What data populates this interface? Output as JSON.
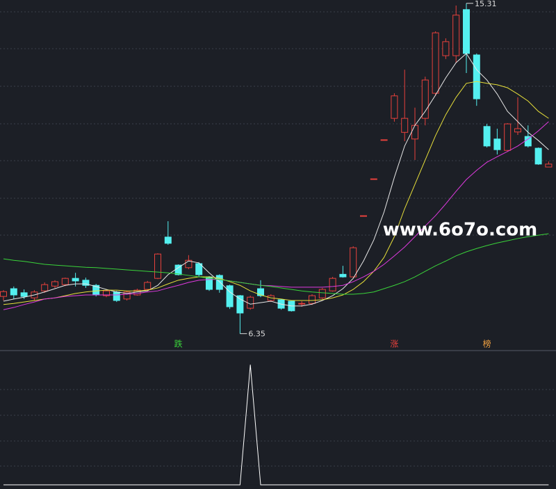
{
  "chart_data": {
    "type": "candlestick",
    "open": [
      7.36,
      7.57,
      7.46,
      7.32,
      7.51,
      7.64,
      7.68,
      7.85,
      7.8,
      7.66,
      7.38,
      7.48,
      7.29,
      7.4,
      7.55,
      7.85,
      8.97,
      8.21,
      8.14,
      8.25,
      7.89,
      7.93,
      7.65,
      7.38,
      7.04,
      7.57,
      7.25,
      7.27,
      7.23,
      7.17,
      7.17,
      7.32,
      7.51,
      7.96,
      7.89,
      9.55,
      10.55,
      11.61,
      12.19,
      11.81,
      11.63,
      12.19,
      12.87,
      13.89,
      13.89,
      15.14,
      13.91,
      11.97,
      11.63,
      11.32,
      11.82,
      11.7,
      11.38,
      10.87
    ],
    "close": [
      7.49,
      7.4,
      7.36,
      7.48,
      7.68,
      7.76,
      7.85,
      7.78,
      7.66,
      7.4,
      7.51,
      7.25,
      7.48,
      7.53,
      7.74,
      8.51,
      8.8,
      7.95,
      8.34,
      7.95,
      7.55,
      7.55,
      7.08,
      6.91,
      7.34,
      7.38,
      7.38,
      7.04,
      6.97,
      7.17,
      7.38,
      7.55,
      7.85,
      7.89,
      8.68,
      9.55,
      10.55,
      11.61,
      12.8,
      12.19,
      12.0,
      13.23,
      14.51,
      14.27,
      14.99,
      13.95,
      12.72,
      11.44,
      11.34,
      12.04,
      11.91,
      11.44,
      10.95,
      10.95
    ],
    "high": [
      7.53,
      7.63,
      7.55,
      7.53,
      7.74,
      7.8,
      7.87,
      8.0,
      7.87,
      7.7,
      7.55,
      7.51,
      7.51,
      7.57,
      7.78,
      8.53,
      9.4,
      8.23,
      8.48,
      8.29,
      7.91,
      7.96,
      7.68,
      7.4,
      7.38,
      7.8,
      7.42,
      7.29,
      7.25,
      7.23,
      7.42,
      7.59,
      7.89,
      8.19,
      8.72,
      9.55,
      10.55,
      11.61,
      12.87,
      13.51,
      12.48,
      13.32,
      14.55,
      14.36,
      15.25,
      15.31,
      13.95,
      12.04,
      11.91,
      12.06,
      12.76,
      12.0,
      11.4,
      11.02
    ],
    "low": [
      7.25,
      7.29,
      7.29,
      7.25,
      7.46,
      7.59,
      7.64,
      7.63,
      7.59,
      7.36,
      7.34,
      7.21,
      7.25,
      7.38,
      7.51,
      7.83,
      8.76,
      7.93,
      8.1,
      7.89,
      7.51,
      7.46,
      7.02,
      6.35,
      7.0,
      7.34,
      7.21,
      7.0,
      6.95,
      7.08,
      7.13,
      7.29,
      7.49,
      7.87,
      7.87,
      9.55,
      10.55,
      11.61,
      12.1,
      11.57,
      11.06,
      12.0,
      12.8,
      13.8,
      13.7,
      13.42,
      12.53,
      11.4,
      11.21,
      11.3,
      11.74,
      11.4,
      10.93,
      10.87
    ],
    "up_color": "#e8413c",
    "down_color": "#54f0f0",
    "ylim": [
      5.91,
      15.4
    ],
    "series": [
      {
        "color": "#e8e8e8",
        "values": [
          7.23,
          7.29,
          7.34,
          7.4,
          7.48,
          7.57,
          7.66,
          7.7,
          7.7,
          7.63,
          7.55,
          7.48,
          7.44,
          7.48,
          7.51,
          7.66,
          7.95,
          8.14,
          8.32,
          8.27,
          8.0,
          7.76,
          7.48,
          7.29,
          7.15,
          7.19,
          7.23,
          7.15,
          7.1,
          7.1,
          7.15,
          7.25,
          7.38,
          7.57,
          7.85,
          8.32,
          8.89,
          9.65,
          10.59,
          11.44,
          12.0,
          12.38,
          12.82,
          13.29,
          13.7,
          13.95,
          13.51,
          13.23,
          12.85,
          12.38,
          12.1,
          11.81,
          11.59,
          11.34
        ]
      },
      {
        "color": "#e8e03a",
        "values": [
          7.14,
          7.17,
          7.21,
          7.25,
          7.29,
          7.32,
          7.38,
          7.44,
          7.48,
          7.51,
          7.53,
          7.53,
          7.51,
          7.51,
          7.53,
          7.59,
          7.7,
          7.8,
          7.85,
          7.89,
          7.89,
          7.85,
          7.76,
          7.66,
          7.51,
          7.4,
          7.32,
          7.29,
          7.25,
          7.25,
          7.25,
          7.27,
          7.32,
          7.4,
          7.55,
          7.76,
          8.04,
          8.42,
          8.98,
          9.74,
          10.4,
          11.06,
          11.72,
          12.29,
          12.76,
          13.14,
          13.19,
          13.14,
          13.1,
          13.02,
          12.85,
          12.66,
          12.38,
          12.19
        ]
      },
      {
        "color": "#e03ae0",
        "values": [
          7.0,
          7.06,
          7.14,
          7.21,
          7.29,
          7.32,
          7.36,
          7.38,
          7.4,
          7.4,
          7.4,
          7.4,
          7.42,
          7.44,
          7.48,
          7.51,
          7.59,
          7.66,
          7.74,
          7.8,
          7.82,
          7.82,
          7.78,
          7.74,
          7.7,
          7.66,
          7.65,
          7.63,
          7.61,
          7.61,
          7.61,
          7.61,
          7.63,
          7.66,
          7.76,
          7.89,
          8.04,
          8.23,
          8.46,
          8.7,
          8.98,
          9.27,
          9.55,
          9.87,
          10.21,
          10.53,
          10.78,
          11.0,
          11.15,
          11.29,
          11.44,
          11.63,
          11.85,
          12.1
        ]
      },
      {
        "color": "#3ad43a",
        "values": [
          8.38,
          8.34,
          8.31,
          8.27,
          8.23,
          8.21,
          8.19,
          8.17,
          8.15,
          8.14,
          8.12,
          8.1,
          8.08,
          8.06,
          8.04,
          8.02,
          8.0,
          7.97,
          7.93,
          7.89,
          7.85,
          7.82,
          7.78,
          7.74,
          7.7,
          7.66,
          7.63,
          7.59,
          7.55,
          7.51,
          7.48,
          7.46,
          7.44,
          7.42,
          7.42,
          7.44,
          7.48,
          7.57,
          7.66,
          7.76,
          7.89,
          8.04,
          8.19,
          8.32,
          8.46,
          8.57,
          8.66,
          8.74,
          8.81,
          8.87,
          8.93,
          8.98,
          9.02,
          9.06
        ]
      }
    ],
    "annotations": [
      {
        "at": 45,
        "value": 15.31
      },
      {
        "at": 23,
        "value": 6.35
      }
    ],
    "signals": [
      {
        "at": 17,
        "label": "跌",
        "color": "#3ad43a"
      },
      {
        "at": 38,
        "label": "涨",
        "color": "#e8413c"
      },
      {
        "at": 47,
        "label": "榜",
        "color": "#f0a040"
      }
    ],
    "watermark": "www.6o7o.com",
    "indicator": {
      "color": "#ffffff",
      "ylim": [
        0,
        1.1
      ],
      "values": [
        0,
        0,
        0,
        0,
        0,
        0,
        0,
        0,
        0,
        0,
        0,
        0,
        0,
        0,
        0,
        0,
        0,
        0,
        0,
        0,
        0,
        0,
        0,
        0,
        1,
        0,
        0,
        0,
        0,
        0,
        0,
        0,
        0,
        0,
        0,
        0,
        0,
        0,
        0,
        0,
        0,
        0,
        0,
        0,
        0,
        0,
        0,
        0,
        0,
        0,
        0,
        0,
        0,
        0
      ]
    }
  }
}
